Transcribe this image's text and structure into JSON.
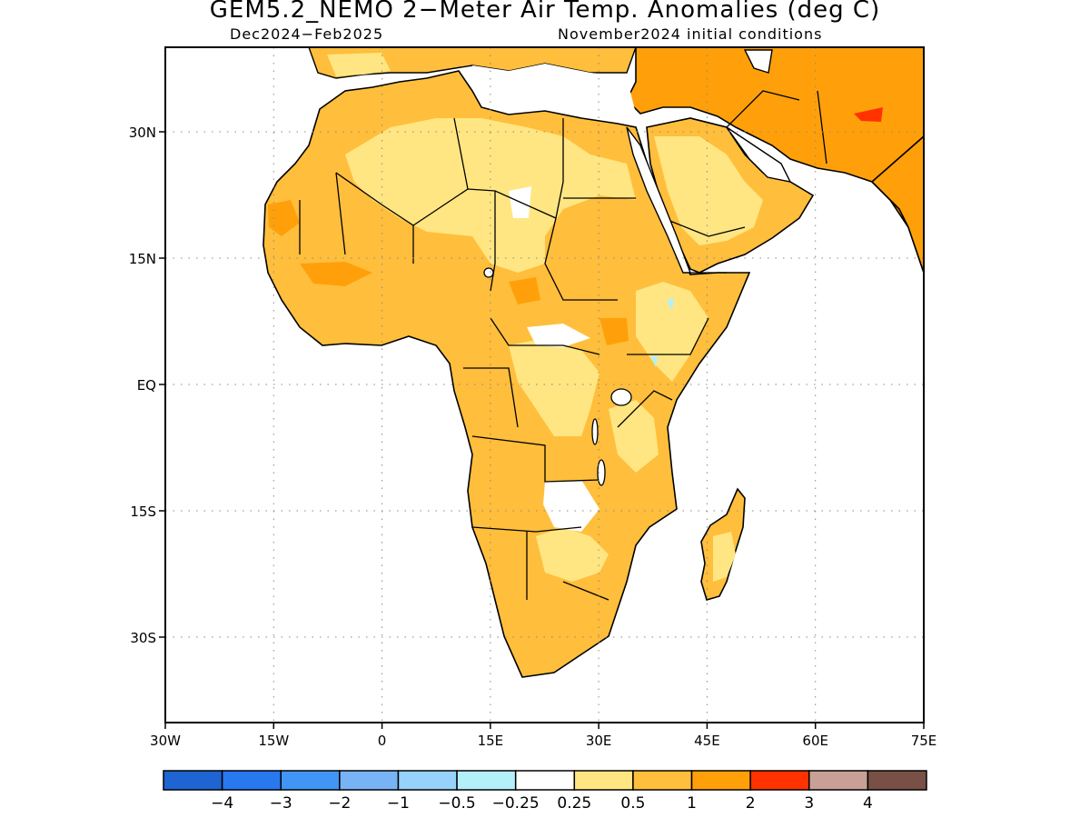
{
  "title": "GEM5.2_NEMO 2−Meter Air Temp. Anomalies (deg C)",
  "subtitle_left": "Dec2024−Feb2025",
  "subtitle_right": "November2024 initial conditions",
  "map": {
    "lon_range": [
      -30,
      75
    ],
    "lat_range": [
      -42,
      40
    ],
    "x_ticks": [
      "30W",
      "15W",
      "0",
      "15E",
      "30E",
      "45E",
      "60E",
      "75E"
    ],
    "y_ticks": [
      "30N",
      "15N",
      "EQ",
      "15S",
      "30S"
    ],
    "gridlines": "dotted"
  },
  "colorbar": {
    "colors": [
      "#1e64d2",
      "#2878f0",
      "#4196f5",
      "#78b4f5",
      "#96d2fa",
      "#b4f0fa",
      "#ffffff",
      "#ffe682",
      "#ffbe3c",
      "#ffa00a",
      "#ff3200",
      "#c8a096",
      "#785046"
    ],
    "labels": [
      "−4",
      "−3",
      "−2",
      "−1",
      "−0.5",
      "−0.25",
      "0.25",
      "0.5",
      "1",
      "2",
      "3",
      "4"
    ]
  }
}
